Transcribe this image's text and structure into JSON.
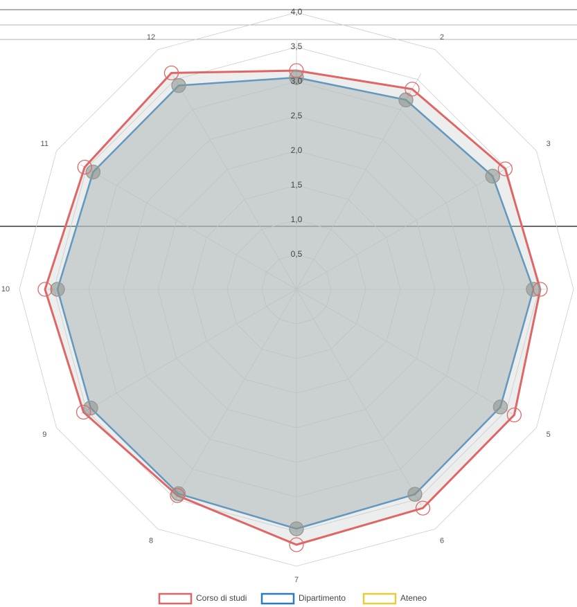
{
  "chart_data": {
    "type": "radar",
    "categories": [
      null,
      "2",
      "3",
      null,
      "5",
      "6",
      "7",
      "8",
      "9",
      "10",
      "11",
      "12"
    ],
    "ylim": [
      0,
      4
    ],
    "yticks": [
      {
        "value": 0.5,
        "label": "0,5"
      },
      {
        "value": 1.0,
        "label": "1,0"
      },
      {
        "value": 1.5,
        "label": "1,5"
      },
      {
        "value": 2.0,
        "label": "2,0"
      },
      {
        "value": 2.5,
        "label": "2,5"
      },
      {
        "value": 3.0,
        "label": "3,0"
      },
      {
        "value": 3.5,
        "label": "3,5"
      },
      {
        "value": 4.0,
        "label": "4,0"
      }
    ],
    "grid": true,
    "legend": "bottom",
    "series": [
      {
        "name": "Corso di studi",
        "color": "#e06666",
        "values": [
          3.16,
          3.34,
          3.48,
          3.52,
          3.63,
          3.65,
          3.69,
          3.44,
          3.55,
          3.63,
          3.53,
          3.61
        ]
      },
      {
        "name": "Dipartimento",
        "color": "#2b7bbf",
        "values": [
          3.06,
          3.16,
          3.27,
          3.42,
          3.4,
          3.42,
          3.46,
          3.41,
          3.43,
          3.45,
          3.39,
          3.4
        ]
      },
      {
        "name": "Ateneo",
        "color": "#e8cc3a",
        "values": [
          3.06,
          3.16,
          3.27,
          3.42,
          3.4,
          3.42,
          3.46,
          3.41,
          3.43,
          3.45,
          3.39,
          3.4
        ]
      }
    ]
  }
}
